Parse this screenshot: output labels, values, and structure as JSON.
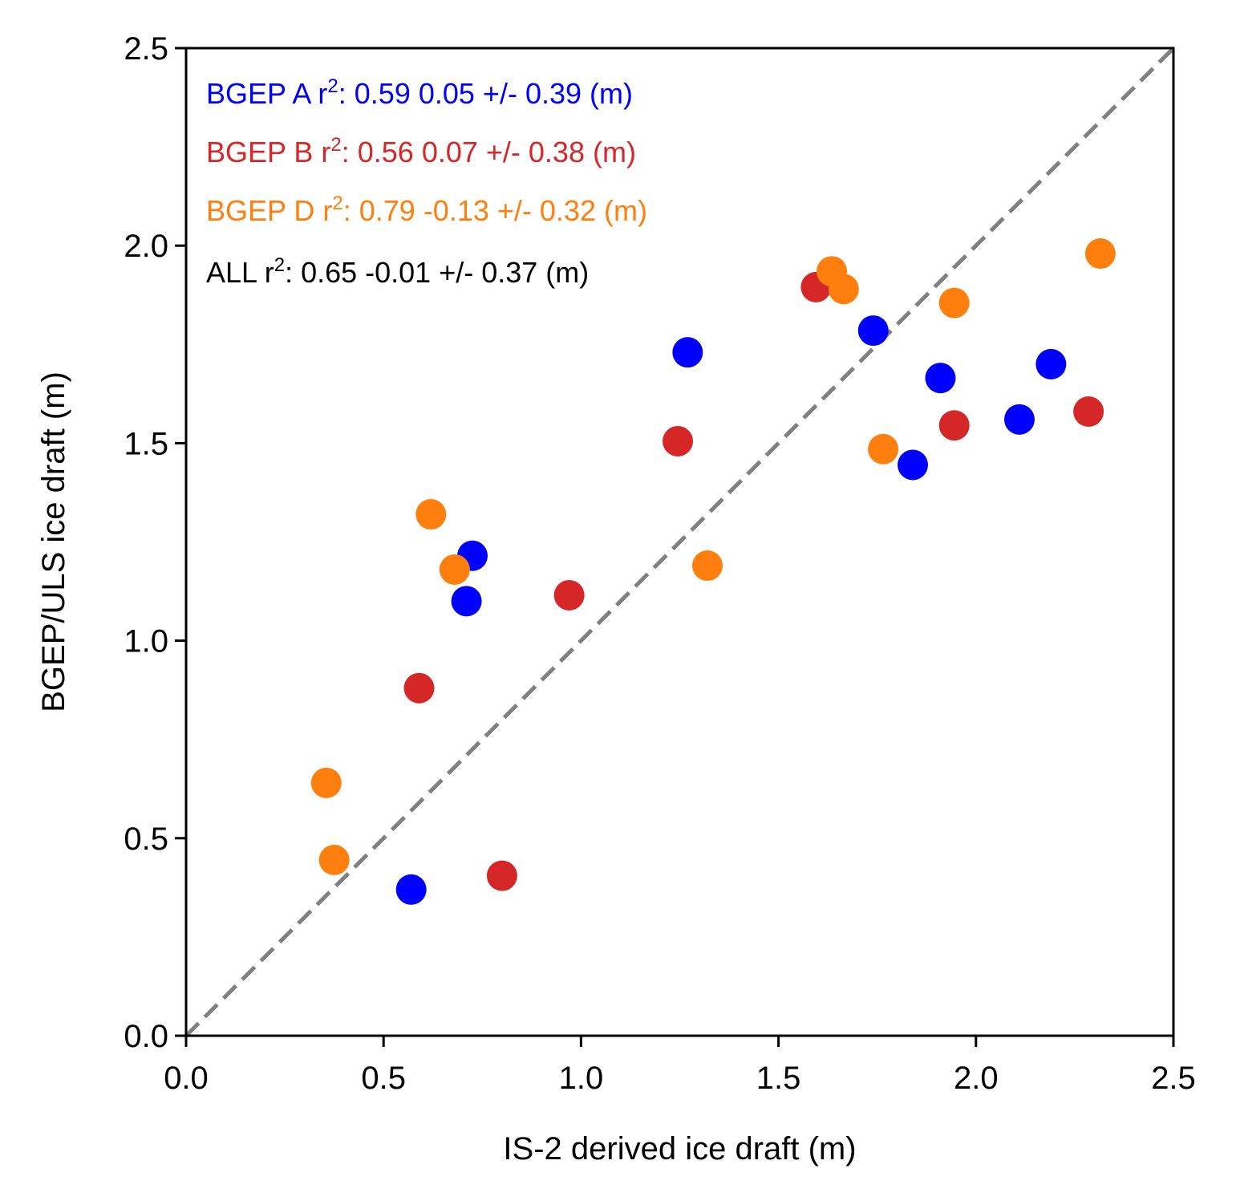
{
  "chart_data": {
    "type": "scatter",
    "xlabel": "IS-2 derived ice draft (m)",
    "ylabel": "BGEP/ULS ice draft (m)",
    "xlim": [
      0.0,
      2.5
    ],
    "ylim": [
      0.0,
      2.5
    ],
    "xticks": [
      "0.0",
      "0.5",
      "1.0",
      "1.5",
      "2.0",
      "2.5"
    ],
    "yticks": [
      "0.0",
      "0.5",
      "1.0",
      "1.5",
      "2.0",
      "2.5"
    ],
    "reference_line": {
      "style": "dashed",
      "color": "#808080",
      "from": [
        0,
        0
      ],
      "to": [
        2.5,
        2.5
      ]
    },
    "series": [
      {
        "name": "BGEP A",
        "color": "#0000ff",
        "stat_label": {
          "prefix": "BGEP A  r",
          "sup": "2",
          "suffix": ": 0.59  0.05 +/- 0.39 (m)"
        },
        "points": [
          [
            0.57,
            0.37
          ],
          [
            0.71,
            1.1
          ],
          [
            0.725,
            1.215
          ],
          [
            1.27,
            1.73
          ],
          [
            1.74,
            1.785
          ],
          [
            1.84,
            1.445
          ],
          [
            1.91,
            1.665
          ],
          [
            2.11,
            1.56
          ],
          [
            2.19,
            1.7
          ]
        ]
      },
      {
        "name": "BGEP B",
        "color": "#d62728",
        "stat_label": {
          "prefix": "BGEP B  r",
          "sup": "2",
          "suffix": ": 0.56  0.07 +/- 0.38 (m)"
        },
        "points": [
          [
            0.59,
            0.88
          ],
          [
            0.8,
            0.405
          ],
          [
            0.97,
            1.115
          ],
          [
            1.245,
            1.505
          ],
          [
            1.595,
            1.895
          ],
          [
            1.945,
            1.545
          ],
          [
            2.285,
            1.58
          ]
        ]
      },
      {
        "name": "BGEP D",
        "color": "#ff7f0e",
        "stat_label": {
          "prefix": "BGEP D  r",
          "sup": "2",
          "suffix": ": 0.79  -0.13 +/- 0.32 (m)"
        },
        "points": [
          [
            0.355,
            0.64
          ],
          [
            0.375,
            0.445
          ],
          [
            0.62,
            1.32
          ],
          [
            0.68,
            1.18
          ],
          [
            1.32,
            1.19
          ],
          [
            1.635,
            1.935
          ],
          [
            1.665,
            1.89
          ],
          [
            1.765,
            1.485
          ],
          [
            1.945,
            1.855
          ],
          [
            2.315,
            1.98
          ]
        ]
      }
    ],
    "overall_label": {
      "color": "#000000",
      "prefix": "ALL  r",
      "sup": "2",
      "suffix": ": 0.65  -0.01 +/- 0.37 (m)"
    }
  }
}
